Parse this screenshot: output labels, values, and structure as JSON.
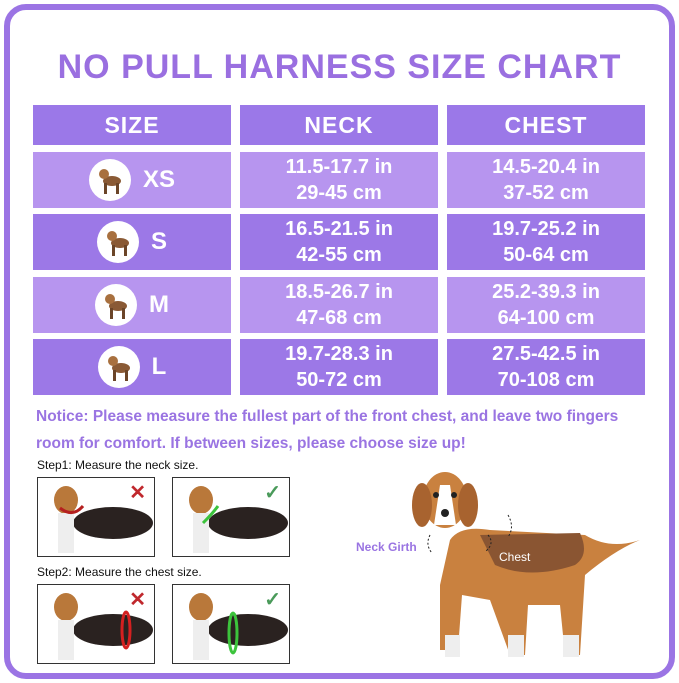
{
  "title": "NO PULL HARNESS SIZE CHART",
  "table": {
    "headers": [
      "SIZE",
      "NECK",
      "CHEST"
    ],
    "rows": [
      {
        "size": "XS",
        "neck_in": "11.5-17.7 in",
        "neck_cm": "29-45 cm",
        "chest_in": "14.5-20.4 in",
        "chest_cm": "37-52 cm",
        "icon": "chihuahua-dog-icon"
      },
      {
        "size": "S",
        "neck_in": "16.5-21.5 in",
        "neck_cm": "42-55 cm",
        "chest_in": "19.7-25.2 in",
        "chest_cm": "50-64 cm",
        "icon": "beagle-dog-icon"
      },
      {
        "size": "M",
        "neck_in": "18.5-26.7 in",
        "neck_cm": "47-68 cm",
        "chest_in": "25.2-39.3 in",
        "chest_cm": "64-100 cm",
        "icon": "shiba-dog-icon"
      },
      {
        "size": "L",
        "neck_in": "19.7-28.3 in",
        "neck_cm": "50-72 cm",
        "chest_in": "27.5-42.5 in",
        "chest_cm": "70-108 cm",
        "icon": "labrador-dog-icon"
      }
    ]
  },
  "notice": "Notice: Please measure the fullest part of the front chest, and leave two fingers room for comfort. If between sizes, please choose size up!",
  "step1": "Step1: Measure the neck size.",
  "step2": "Step2: Measure the chest size.",
  "marks": {
    "wrong": "✕",
    "right": "✓"
  },
  "diagram": {
    "neck_label": "Neck Girth",
    "chest_label": "Chest"
  },
  "colors": {
    "primary": "#9b74e4",
    "row_light": "#b795ef",
    "row_dark": "#9c78e7",
    "wrong": "#c0282d",
    "right": "#4a9a5a"
  }
}
